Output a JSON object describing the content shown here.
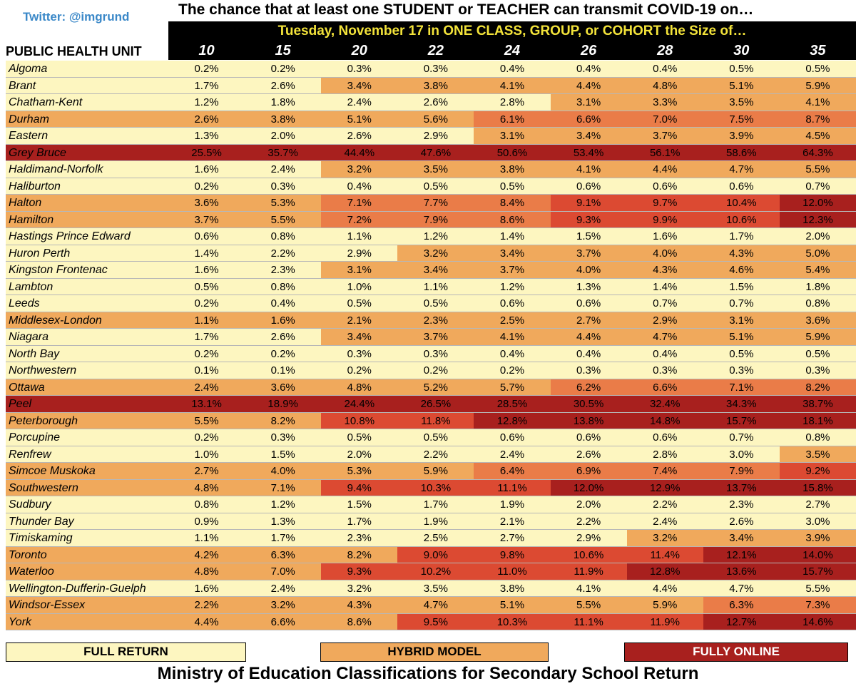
{
  "header": {
    "twitter": "Twitter: @imgrund",
    "title": "The chance that at least one STUDENT or TEACHER can transmit COVID-19 on…",
    "subtitle": "Tuesday, November 17 in ONE CLASS, GROUP, or COHORT the Size of…",
    "row_label": "PUBLIC HEALTH UNIT"
  },
  "colors": {
    "full_return": "#fdf6c0",
    "hybrid": "#f0a95c",
    "online_light": "#e05a38",
    "online_dark": "#a8201e"
  },
  "legend": {
    "full_return": "FULL RETURN",
    "hybrid": "HYBRID MODEL",
    "fully_online": "FULLY ONLINE"
  },
  "footer": "Ministry of Education Classifications for Secondary School Return",
  "chart_data": {
    "type": "heatmap",
    "title": "The chance that at least one STUDENT or TEACHER can transmit COVID-19 on…",
    "subtitle": "Tuesday, November 17 in ONE CLASS, GROUP, or COHORT the Size of…",
    "columns": [
      "10",
      "15",
      "20",
      "22",
      "24",
      "26",
      "28",
      "30",
      "35"
    ],
    "rows": [
      {
        "name": "Algoma",
        "values": [
          "0.2%",
          "0.2%",
          "0.3%",
          "0.3%",
          "0.4%",
          "0.4%",
          "0.4%",
          "0.5%",
          "0.5%"
        ],
        "classes": [
          "f",
          "f",
          "f",
          "f",
          "f",
          "f",
          "f",
          "f",
          "f"
        ]
      },
      {
        "name": "Brant",
        "values": [
          "1.7%",
          "2.6%",
          "3.4%",
          "3.8%",
          "4.1%",
          "4.4%",
          "4.8%",
          "5.1%",
          "5.9%"
        ],
        "classes": [
          "f",
          "f",
          "h",
          "h",
          "h",
          "h",
          "h",
          "h",
          "h"
        ]
      },
      {
        "name": "Chatham-Kent",
        "values": [
          "1.2%",
          "1.8%",
          "2.4%",
          "2.6%",
          "2.8%",
          "3.1%",
          "3.3%",
          "3.5%",
          "4.1%"
        ],
        "classes": [
          "f",
          "f",
          "f",
          "f",
          "f",
          "h",
          "h",
          "h",
          "h"
        ]
      },
      {
        "name": "Durham",
        "values": [
          "2.6%",
          "3.8%",
          "5.1%",
          "5.6%",
          "6.1%",
          "6.6%",
          "7.0%",
          "7.5%",
          "8.7%"
        ],
        "classes": [
          "h",
          "h",
          "h",
          "h",
          "o",
          "o",
          "o",
          "o",
          "o"
        ]
      },
      {
        "name": "Eastern",
        "values": [
          "1.3%",
          "2.0%",
          "2.6%",
          "2.9%",
          "3.1%",
          "3.4%",
          "3.7%",
          "3.9%",
          "4.5%"
        ],
        "classes": [
          "f",
          "f",
          "f",
          "f",
          "h",
          "h",
          "h",
          "h",
          "h"
        ]
      },
      {
        "name": "Grey Bruce",
        "values": [
          "25.5%",
          "35.7%",
          "44.4%",
          "47.6%",
          "50.6%",
          "53.4%",
          "56.1%",
          "58.6%",
          "64.3%"
        ],
        "classes": [
          "d",
          "d",
          "d",
          "d",
          "d",
          "d",
          "d",
          "d",
          "d"
        ]
      },
      {
        "name": "Haldimand-Norfolk",
        "values": [
          "1.6%",
          "2.4%",
          "3.2%",
          "3.5%",
          "3.8%",
          "4.1%",
          "4.4%",
          "4.7%",
          "5.5%"
        ],
        "classes": [
          "f",
          "f",
          "h",
          "h",
          "h",
          "h",
          "h",
          "h",
          "h"
        ]
      },
      {
        "name": "Haliburton",
        "values": [
          "0.2%",
          "0.3%",
          "0.4%",
          "0.5%",
          "0.5%",
          "0.6%",
          "0.6%",
          "0.6%",
          "0.7%"
        ],
        "classes": [
          "f",
          "f",
          "f",
          "f",
          "f",
          "f",
          "f",
          "f",
          "f"
        ]
      },
      {
        "name": "Halton",
        "values": [
          "3.6%",
          "5.3%",
          "7.1%",
          "7.7%",
          "8.4%",
          "9.1%",
          "9.7%",
          "10.4%",
          "12.0%"
        ],
        "classes": [
          "h",
          "h",
          "o",
          "o",
          "o",
          "r",
          "r",
          "r",
          "d"
        ]
      },
      {
        "name": "Hamilton",
        "values": [
          "3.7%",
          "5.5%",
          "7.2%",
          "7.9%",
          "8.6%",
          "9.3%",
          "9.9%",
          "10.6%",
          "12.3%"
        ],
        "classes": [
          "h",
          "h",
          "o",
          "o",
          "o",
          "r",
          "r",
          "r",
          "d"
        ]
      },
      {
        "name": "Hastings Prince Edward",
        "values": [
          "0.6%",
          "0.8%",
          "1.1%",
          "1.2%",
          "1.4%",
          "1.5%",
          "1.6%",
          "1.7%",
          "2.0%"
        ],
        "classes": [
          "f",
          "f",
          "f",
          "f",
          "f",
          "f",
          "f",
          "f",
          "f"
        ]
      },
      {
        "name": "Huron Perth",
        "values": [
          "1.4%",
          "2.2%",
          "2.9%",
          "3.2%",
          "3.4%",
          "3.7%",
          "4.0%",
          "4.3%",
          "5.0%"
        ],
        "classes": [
          "f",
          "f",
          "f",
          "h",
          "h",
          "h",
          "h",
          "h",
          "h"
        ]
      },
      {
        "name": "Kingston Frontenac",
        "values": [
          "1.6%",
          "2.3%",
          "3.1%",
          "3.4%",
          "3.7%",
          "4.0%",
          "4.3%",
          "4.6%",
          "5.4%"
        ],
        "classes": [
          "f",
          "f",
          "h",
          "h",
          "h",
          "h",
          "h",
          "h",
          "h"
        ]
      },
      {
        "name": "Lambton",
        "values": [
          "0.5%",
          "0.8%",
          "1.0%",
          "1.1%",
          "1.2%",
          "1.3%",
          "1.4%",
          "1.5%",
          "1.8%"
        ],
        "classes": [
          "f",
          "f",
          "f",
          "f",
          "f",
          "f",
          "f",
          "f",
          "f"
        ]
      },
      {
        "name": "Leeds",
        "values": [
          "0.2%",
          "0.4%",
          "0.5%",
          "0.5%",
          "0.6%",
          "0.6%",
          "0.7%",
          "0.7%",
          "0.8%"
        ],
        "classes": [
          "f",
          "f",
          "f",
          "f",
          "f",
          "f",
          "f",
          "f",
          "f"
        ]
      },
      {
        "name": "Middlesex-London",
        "values": [
          "1.1%",
          "1.6%",
          "2.1%",
          "2.3%",
          "2.5%",
          "2.7%",
          "2.9%",
          "3.1%",
          "3.6%"
        ],
        "classes": [
          "h",
          "h",
          "h",
          "h",
          "h",
          "h",
          "h",
          "h",
          "h"
        ]
      },
      {
        "name": "Niagara",
        "values": [
          "1.7%",
          "2.6%",
          "3.4%",
          "3.7%",
          "4.1%",
          "4.4%",
          "4.7%",
          "5.1%",
          "5.9%"
        ],
        "classes": [
          "f",
          "f",
          "h",
          "h",
          "h",
          "h",
          "h",
          "h",
          "h"
        ]
      },
      {
        "name": "North Bay",
        "values": [
          "0.2%",
          "0.2%",
          "0.3%",
          "0.3%",
          "0.4%",
          "0.4%",
          "0.4%",
          "0.5%",
          "0.5%"
        ],
        "classes": [
          "f",
          "f",
          "f",
          "f",
          "f",
          "f",
          "f",
          "f",
          "f"
        ]
      },
      {
        "name": "Northwestern",
        "values": [
          "0.1%",
          "0.1%",
          "0.2%",
          "0.2%",
          "0.2%",
          "0.3%",
          "0.3%",
          "0.3%",
          "0.3%"
        ],
        "classes": [
          "f",
          "f",
          "f",
          "f",
          "f",
          "f",
          "f",
          "f",
          "f"
        ]
      },
      {
        "name": "Ottawa",
        "values": [
          "2.4%",
          "3.6%",
          "4.8%",
          "5.2%",
          "5.7%",
          "6.2%",
          "6.6%",
          "7.1%",
          "8.2%"
        ],
        "classes": [
          "h",
          "h",
          "h",
          "h",
          "h",
          "o",
          "o",
          "o",
          "o"
        ]
      },
      {
        "name": "Peel",
        "values": [
          "13.1%",
          "18.9%",
          "24.4%",
          "26.5%",
          "28.5%",
          "30.5%",
          "32.4%",
          "34.3%",
          "38.7%"
        ],
        "classes": [
          "d",
          "d",
          "d",
          "d",
          "d",
          "d",
          "d",
          "d",
          "d"
        ]
      },
      {
        "name": "Peterborough",
        "values": [
          "5.5%",
          "8.2%",
          "10.8%",
          "11.8%",
          "12.8%",
          "13.8%",
          "14.8%",
          "15.7%",
          "18.1%"
        ],
        "classes": [
          "h",
          "h",
          "r",
          "r",
          "d",
          "d",
          "d",
          "d",
          "d"
        ]
      },
      {
        "name": "Porcupine",
        "values": [
          "0.2%",
          "0.3%",
          "0.5%",
          "0.5%",
          "0.6%",
          "0.6%",
          "0.6%",
          "0.7%",
          "0.8%"
        ],
        "classes": [
          "f",
          "f",
          "f",
          "f",
          "f",
          "f",
          "f",
          "f",
          "f"
        ]
      },
      {
        "name": "Renfrew",
        "values": [
          "1.0%",
          "1.5%",
          "2.0%",
          "2.2%",
          "2.4%",
          "2.6%",
          "2.8%",
          "3.0%",
          "3.5%"
        ],
        "classes": [
          "f",
          "f",
          "f",
          "f",
          "f",
          "f",
          "f",
          "f",
          "h"
        ]
      },
      {
        "name": "Simcoe Muskoka",
        "values": [
          "2.7%",
          "4.0%",
          "5.3%",
          "5.9%",
          "6.4%",
          "6.9%",
          "7.4%",
          "7.9%",
          "9.2%"
        ],
        "classes": [
          "h",
          "h",
          "h",
          "h",
          "o",
          "o",
          "o",
          "o",
          "r"
        ]
      },
      {
        "name": "Southwestern",
        "values": [
          "4.8%",
          "7.1%",
          "9.4%",
          "10.3%",
          "11.1%",
          "12.0%",
          "12.9%",
          "13.7%",
          "15.8%"
        ],
        "classes": [
          "h",
          "h",
          "r",
          "r",
          "r",
          "d",
          "d",
          "d",
          "d"
        ]
      },
      {
        "name": "Sudbury",
        "values": [
          "0.8%",
          "1.2%",
          "1.5%",
          "1.7%",
          "1.9%",
          "2.0%",
          "2.2%",
          "2.3%",
          "2.7%"
        ],
        "classes": [
          "f",
          "f",
          "f",
          "f",
          "f",
          "f",
          "f",
          "f",
          "f"
        ]
      },
      {
        "name": "Thunder Bay",
        "values": [
          "0.9%",
          "1.3%",
          "1.7%",
          "1.9%",
          "2.1%",
          "2.2%",
          "2.4%",
          "2.6%",
          "3.0%"
        ],
        "classes": [
          "f",
          "f",
          "f",
          "f",
          "f",
          "f",
          "f",
          "f",
          "f"
        ]
      },
      {
        "name": "Timiskaming",
        "values": [
          "1.1%",
          "1.7%",
          "2.3%",
          "2.5%",
          "2.7%",
          "2.9%",
          "3.2%",
          "3.4%",
          "3.9%"
        ],
        "classes": [
          "f",
          "f",
          "f",
          "f",
          "f",
          "f",
          "h",
          "h",
          "h"
        ]
      },
      {
        "name": "Toronto",
        "values": [
          "4.2%",
          "6.3%",
          "8.2%",
          "9.0%",
          "9.8%",
          "10.6%",
          "11.4%",
          "12.1%",
          "14.0%"
        ],
        "classes": [
          "h",
          "h",
          "h",
          "r",
          "r",
          "r",
          "r",
          "d",
          "d"
        ]
      },
      {
        "name": "Waterloo",
        "values": [
          "4.8%",
          "7.0%",
          "9.3%",
          "10.2%",
          "11.0%",
          "11.9%",
          "12.8%",
          "13.6%",
          "15.7%"
        ],
        "classes": [
          "h",
          "h",
          "r",
          "r",
          "r",
          "r",
          "d",
          "d",
          "d"
        ]
      },
      {
        "name": "Wellington-Dufferin-Guelph",
        "values": [
          "1.6%",
          "2.4%",
          "3.2%",
          "3.5%",
          "3.8%",
          "4.1%",
          "4.4%",
          "4.7%",
          "5.5%"
        ],
        "classes": [
          "f",
          "f",
          "f",
          "f",
          "f",
          "f",
          "f",
          "f",
          "f"
        ]
      },
      {
        "name": "Windsor-Essex",
        "values": [
          "2.2%",
          "3.2%",
          "4.3%",
          "4.7%",
          "5.1%",
          "5.5%",
          "5.9%",
          "6.3%",
          "7.3%"
        ],
        "classes": [
          "h",
          "h",
          "h",
          "h",
          "h",
          "h",
          "h",
          "o",
          "o"
        ]
      },
      {
        "name": "York",
        "values": [
          "4.4%",
          "6.6%",
          "8.6%",
          "9.5%",
          "10.3%",
          "11.1%",
          "11.9%",
          "12.7%",
          "14.6%"
        ],
        "classes": [
          "h",
          "h",
          "h",
          "r",
          "r",
          "r",
          "r",
          "d",
          "d"
        ]
      }
    ],
    "class_key": {
      "f": "full_return",
      "h": "hybrid",
      "o": "online_light",
      "r": "online_mid",
      "d": "online_dark"
    },
    "class_colors": {
      "f": "#fdf6c0",
      "h": "#f0a95c",
      "o": "#ea7c48",
      "r": "#dc4a32",
      "d": "#a8201e"
    }
  }
}
